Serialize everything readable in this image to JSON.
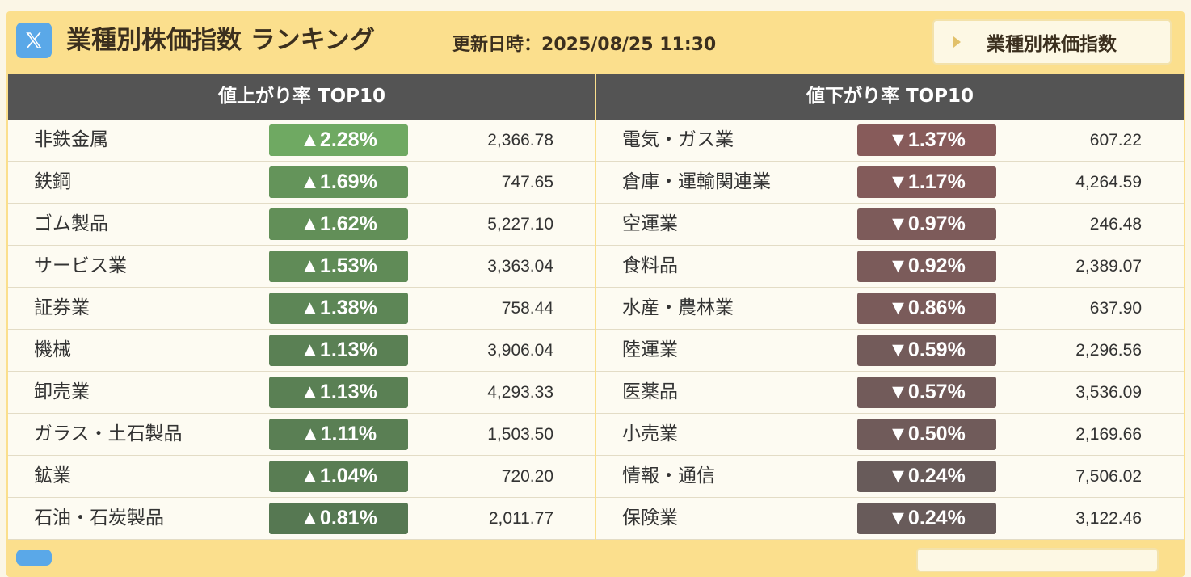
{
  "header": {
    "title": "業種別株価指数 ランキング",
    "updated_label": "更新日時：",
    "updated_value": "2025/08/25 11:30",
    "link_label": "業種別株価指数",
    "x_icon": "x-logo-icon",
    "x_color": "#5aa8e8"
  },
  "gainers": {
    "heading": "値上がり率 TOP10",
    "rows": [
      {
        "name": "非鉄金属",
        "pct": "▲2.28%",
        "value": "2,366.78",
        "color": "#6fa962"
      },
      {
        "name": "鉄鋼",
        "pct": "▲1.69%",
        "value": "747.65",
        "color": "#64945a"
      },
      {
        "name": "ゴム製品",
        "pct": "▲1.62%",
        "value": "5,227.10",
        "color": "#628f58"
      },
      {
        "name": "サービス業",
        "pct": "▲1.53%",
        "value": "3,363.04",
        "color": "#608b57"
      },
      {
        "name": "証券業",
        "pct": "▲1.38%",
        "value": "758.44",
        "color": "#5d8656"
      },
      {
        "name": "機械",
        "pct": "▲1.13%",
        "value": "3,906.04",
        "color": "#5a8054"
      },
      {
        "name": "卸売業",
        "pct": "▲1.13%",
        "value": "4,293.33",
        "color": "#5a8054"
      },
      {
        "name": "ガラス・土石製品",
        "pct": "▲1.11%",
        "value": "1,503.50",
        "color": "#5a7f54"
      },
      {
        "name": "鉱業",
        "pct": "▲1.04%",
        "value": "720.20",
        "color": "#597d53"
      },
      {
        "name": "石油・石炭製品",
        "pct": "▲0.81%",
        "value": "2,011.77",
        "color": "#567852"
      }
    ]
  },
  "losers": {
    "heading": "値下がり率 TOP10",
    "rows": [
      {
        "name": "電気・ガス業",
        "pct": "▼1.37%",
        "value": "607.22",
        "color": "#875b5a"
      },
      {
        "name": "倉庫・運輸関連業",
        "pct": "▼1.17%",
        "value": "4,264.59",
        "color": "#835b5a"
      },
      {
        "name": "空運業",
        "pct": "▼0.97%",
        "value": "246.48",
        "color": "#7d5b5a"
      },
      {
        "name": "食料品",
        "pct": "▼0.92%",
        "value": "2,389.07",
        "color": "#7b5b5a"
      },
      {
        "name": "水産・農林業",
        "pct": "▼0.86%",
        "value": "637.90",
        "color": "#7a5b5a"
      },
      {
        "name": "陸運業",
        "pct": "▼0.59%",
        "value": "2,296.56",
        "color": "#735b5a"
      },
      {
        "name": "医薬品",
        "pct": "▼0.57%",
        "value": "3,536.09",
        "color": "#725b5a"
      },
      {
        "name": "小売業",
        "pct": "▼0.50%",
        "value": "2,169.66",
        "color": "#705b5a"
      },
      {
        "name": "情報・通信",
        "pct": "▼0.24%",
        "value": "7,506.02",
        "color": "#685b5a"
      },
      {
        "name": "保険業",
        "pct": "▼0.24%",
        "value": "3,122.46",
        "color": "#685b5a"
      }
    ]
  }
}
